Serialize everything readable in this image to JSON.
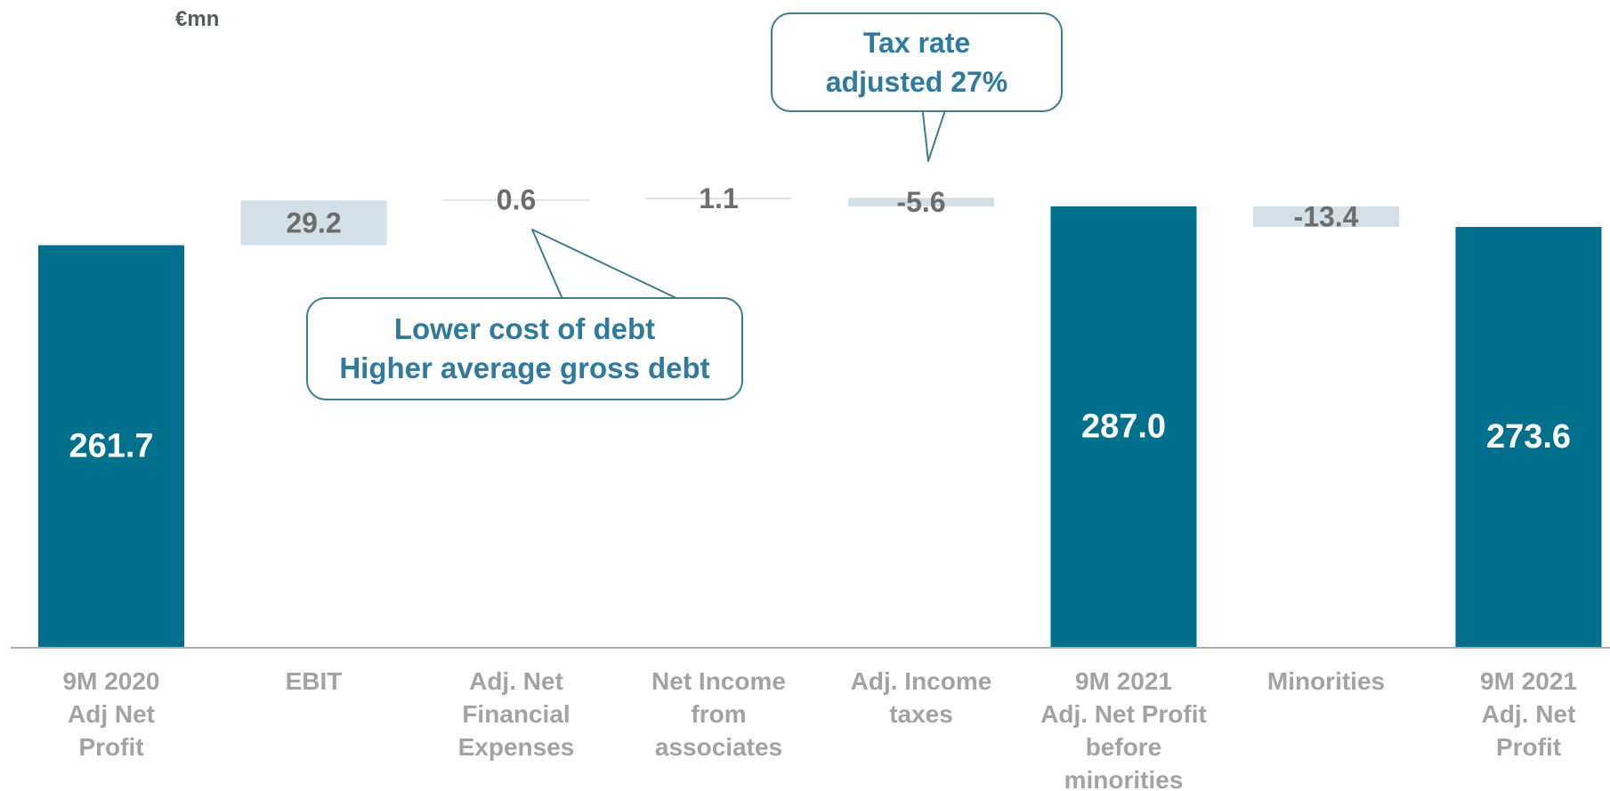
{
  "unit_label": "€mn",
  "callouts": {
    "tax": {
      "line1": "Tax rate",
      "line2": "adjusted 27%"
    },
    "debt": {
      "line1": "Lower cost of debt",
      "line2": "Higher average gross debt"
    }
  },
  "colors": {
    "total_bar": "#00708c",
    "delta_bar": "#d3e0e8",
    "total_label": "#ffffff",
    "delta_label": "#6d6d6d",
    "axis_label": "#a3a3a3",
    "callout_text": "#2f7a9e",
    "callout_border": "#3e7d8a"
  },
  "chart_data": {
    "type": "bar",
    "subtype": "waterfall",
    "unit": "€mn",
    "categories": [
      [
        "9M 2020",
        "Adj Net",
        "Profit"
      ],
      [
        "EBIT"
      ],
      [
        "Adj. Net",
        "Financial",
        "Expenses"
      ],
      [
        "Net Income",
        "from",
        "associates"
      ],
      [
        "Adj. Income",
        "taxes"
      ],
      [
        "9M 2021",
        "Adj. Net Profit",
        "before",
        "minorities"
      ],
      [
        "Minorities"
      ],
      [
        "9M 2021",
        "Adj. Net",
        "Profit"
      ]
    ],
    "values": [
      261.7,
      29.2,
      0.6,
      1.1,
      -5.6,
      287.0,
      -13.4,
      273.6
    ],
    "labels": [
      "261.7",
      "29.2",
      "0.6",
      "1.1",
      "-5.6",
      "287.0",
      "-13.4",
      "273.6"
    ],
    "kinds": [
      "total",
      "delta",
      "delta",
      "delta",
      "delta",
      "total",
      "delta",
      "total"
    ],
    "grid": false,
    "legend": "none"
  }
}
